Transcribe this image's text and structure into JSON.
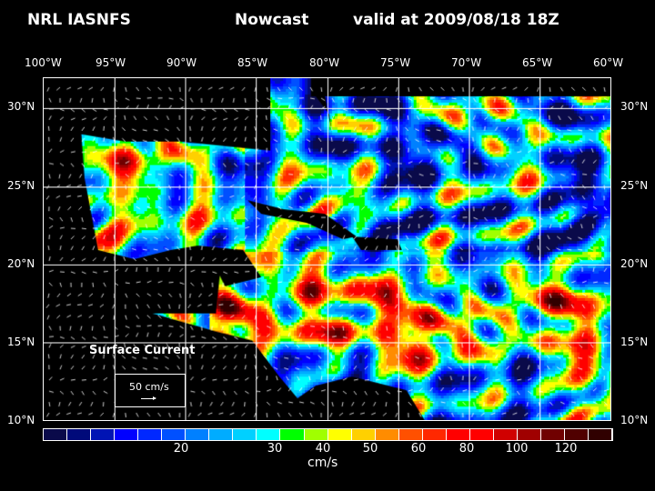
{
  "title": {
    "source": "NRL IASNFS",
    "product": "Nowcast",
    "valid": "valid at 2009/08/18 18Z"
  },
  "lon_labels": [
    "100°W",
    "95°W",
    "90°W",
    "85°W",
    "80°W",
    "75°W",
    "70°W",
    "65°W",
    "60°W"
  ],
  "lat_labels": [
    "30°N",
    "25°N",
    "20°N",
    "15°N",
    "10°N"
  ],
  "legend": {
    "title": "Surface Current",
    "ref_vector": "50 cm/s"
  },
  "colorbar": {
    "unit": "cm/s",
    "ticks": [
      "20",
      "30",
      "40",
      "50",
      "60",
      "80",
      "100",
      "120"
    ],
    "colors": [
      "#0a0a4a",
      "#000a7a",
      "#0014b4",
      "#0000ff",
      "#0028ff",
      "#0050ff",
      "#0080ff",
      "#00acff",
      "#00d0ff",
      "#00ffff",
      "#00ff00",
      "#a0ff00",
      "#ffff00",
      "#ffd000",
      "#ff8c00",
      "#ff5000",
      "#ff2800",
      "#ff0000",
      "#ff0000",
      "#d00000",
      "#a00000",
      "#700000",
      "#500000",
      "#300000"
    ]
  }
}
